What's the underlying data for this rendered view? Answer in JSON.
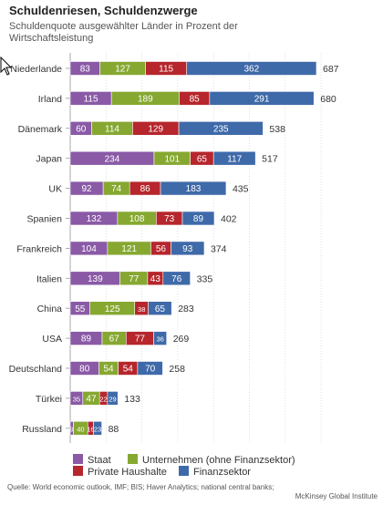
{
  "header": {
    "title": "Schuldenriesen, Schuldenzwerge",
    "subtitle": "Schuldenquote ausgewählter Länder in Prozent der Wirtschaftsleistung"
  },
  "source": {
    "line1": "Quelle: World economic outlook, IMF; BIS; Haver Analytics; national central banks;",
    "line2": "McKinsey Global Institute"
  },
  "colors": {
    "Staat": "#8a5aa6",
    "Unternehmen (ohne Finanzsektor)": "#86a831",
    "Private Haushalte": "#b6262c",
    "Finanzsektor": "#3f6aa9",
    "grid": "#cccccc"
  },
  "chart_data": {
    "type": "bar",
    "orientation": "horizontal",
    "stacked": true,
    "title": "Schuldenriesen, Schuldenzwerge",
    "subtitle": "Schuldenquote ausgewählter Länder in Prozent der Wirtschaftsleistung",
    "categories": [
      "Niederlande",
      "Irland",
      "Dänemark",
      "Japan",
      "UK",
      "Spanien",
      "Frankreich",
      "Italien",
      "China",
      "USA",
      "Deutschland",
      "Türkei",
      "Russland"
    ],
    "series": [
      {
        "name": "Staat",
        "values": [
          83,
          115,
          60,
          234,
          92,
          132,
          104,
          139,
          55,
          89,
          80,
          35,
          9
        ]
      },
      {
        "name": "Unternehmen (ohne Finanzsektor)",
        "values": [
          127,
          189,
          114,
          101,
          74,
          108,
          121,
          77,
          125,
          67,
          54,
          47,
          40
        ]
      },
      {
        "name": "Private Haushalte",
        "values": [
          115,
          85,
          129,
          65,
          86,
          73,
          56,
          43,
          38,
          77,
          54,
          22,
          16
        ]
      },
      {
        "name": "Finanzsektor",
        "values": [
          362,
          291,
          235,
          117,
          183,
          89,
          93,
          76,
          65,
          36,
          70,
          29,
          23
        ]
      }
    ],
    "totals": [
      687,
      680,
      538,
      517,
      435,
      402,
      374,
      335,
      283,
      269,
      258,
      133,
      88
    ],
    "xlim": [
      0,
      700
    ],
    "grid": true,
    "legend_position": "bottom"
  }
}
